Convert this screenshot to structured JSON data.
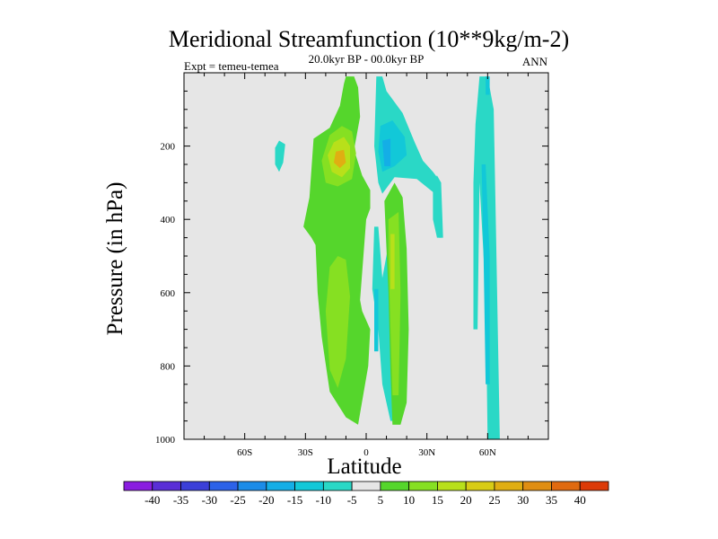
{
  "chart_data": {
    "type": "heatmap",
    "title": "Meridional Streamfunction (10**9kg/m-2)",
    "subtitle": "20.0kyr BP - 00.0kyr BP",
    "left_label": "Expt = temeu-temea",
    "right_label": "ANN",
    "xlabel": "Latitude",
    "ylabel": "Pressure (in hPa)",
    "xlim": [
      -90,
      90
    ],
    "ylim": [
      1000,
      0
    ],
    "x_ticks": [
      {
        "value": -60,
        "label": "60S"
      },
      {
        "value": -30,
        "label": "30S"
      },
      {
        "value": 0,
        "label": "0"
      },
      {
        "value": 30,
        "label": "30N"
      },
      {
        "value": 60,
        "label": "60N"
      }
    ],
    "y_ticks": [
      {
        "value": 200,
        "label": "200"
      },
      {
        "value": 400,
        "label": "400"
      },
      {
        "value": 600,
        "label": "600"
      },
      {
        "value": 800,
        "label": "800"
      },
      {
        "value": 1000,
        "label": "1000"
      }
    ],
    "background_color": "#e6e6e6",
    "colorbar": {
      "labels": [
        "-40",
        "-35",
        "-30",
        "-25",
        "-20",
        "-15",
        "-10",
        "-5",
        "5",
        "10",
        "15",
        "20",
        "25",
        "30",
        "35",
        "40"
      ],
      "colors": [
        "#8a1de0",
        "#5a2ed6",
        "#3b3fd8",
        "#2c62e8",
        "#1c8ce8",
        "#14aee6",
        "#12c8d8",
        "#2ad8c6",
        "#e6e6e6",
        "#55d62c",
        "#86e022",
        "#b8e01a",
        "#d8cc14",
        "#e0ae12",
        "#e08e12",
        "#e06a10",
        "#dc3a08"
      ]
    },
    "features": [
      {
        "name": "nh-high-lat-band",
        "color": "#2ad8c6",
        "points": [
          [
            54,
            140
          ],
          [
            56,
            10
          ],
          [
            60,
            10
          ],
          [
            63,
            100
          ],
          [
            64,
            400
          ],
          [
            66,
            1000
          ],
          [
            60,
            1000
          ],
          [
            59,
            600
          ],
          [
            56,
            300
          ],
          [
            55,
            700
          ],
          [
            53,
            700
          ],
          [
            53,
            300
          ]
        ]
      },
      {
        "name": "nh-high-lat-core",
        "color": "#12c8d8",
        "points": [
          [
            57,
            250
          ],
          [
            59,
            250
          ],
          [
            61,
            500
          ],
          [
            61,
            850
          ],
          [
            59,
            850
          ],
          [
            58,
            500
          ]
        ]
      },
      {
        "name": "nh-high-lat-tip",
        "color": "#12c8d8",
        "points": [
          [
            59,
            10
          ],
          [
            61,
            10
          ],
          [
            61,
            60
          ],
          [
            59,
            60
          ]
        ]
      },
      {
        "name": "tropical-neg-upper",
        "color": "#2ad8c6",
        "points": [
          [
            5,
            10
          ],
          [
            8,
            10
          ],
          [
            10,
            50
          ],
          [
            18,
            110
          ],
          [
            24,
            190
          ],
          [
            28,
            240
          ],
          [
            33,
            270
          ],
          [
            37,
            300
          ],
          [
            38,
            450
          ],
          [
            36,
            450
          ],
          [
            34,
            330
          ],
          [
            25,
            290
          ],
          [
            14,
            285
          ],
          [
            8,
            330
          ],
          [
            6,
            300
          ],
          [
            4,
            200
          ]
        ]
      },
      {
        "name": "tropical-neg-upper-inner",
        "color": "#12c8d8",
        "points": [
          [
            7,
            145
          ],
          [
            13,
            130
          ],
          [
            19,
            175
          ],
          [
            20,
            225
          ],
          [
            14,
            255
          ],
          [
            8,
            270
          ],
          [
            6,
            215
          ]
        ]
      },
      {
        "name": "tropical-neg-core",
        "color": "#14aee6",
        "points": [
          [
            8,
            185
          ],
          [
            12,
            180
          ],
          [
            12,
            255
          ],
          [
            9,
            255
          ]
        ]
      },
      {
        "name": "tropical-neg-lower",
        "color": "#2ad8c6",
        "points": [
          [
            3,
            590
          ],
          [
            6,
            700
          ],
          [
            8,
            850
          ],
          [
            12,
            950
          ],
          [
            16,
            950
          ],
          [
            17,
            850
          ],
          [
            16,
            700
          ],
          [
            14,
            600
          ],
          [
            13,
            470
          ],
          [
            11,
            470
          ],
          [
            8,
            560
          ],
          [
            6,
            420
          ],
          [
            4,
            420
          ]
        ]
      },
      {
        "name": "tropical-neg-lower-inner",
        "color": "#12c8d8",
        "points": [
          [
            4,
            590
          ],
          [
            6,
            590
          ],
          [
            6,
            760
          ],
          [
            4,
            760
          ]
        ]
      },
      {
        "name": "tropical-pos-nh",
        "color": "#55d62c",
        "points": [
          [
            9,
            350
          ],
          [
            14,
            300
          ],
          [
            18,
            340
          ],
          [
            20,
            480
          ],
          [
            21,
            700
          ],
          [
            20,
            900
          ],
          [
            17,
            960
          ],
          [
            13,
            960
          ],
          [
            12,
            820
          ],
          [
            11,
            600
          ],
          [
            10,
            480
          ]
        ]
      },
      {
        "name": "tropical-pos-nh-inner",
        "color": "#86e022",
        "points": [
          [
            11,
            400
          ],
          [
            16,
            380
          ],
          [
            17,
            600
          ],
          [
            16,
            880
          ],
          [
            13,
            880
          ],
          [
            12,
            700
          ],
          [
            11,
            500
          ]
        ]
      },
      {
        "name": "tropical-pos-nh-core",
        "color": "#b8e01a",
        "points": [
          [
            12,
            440
          ],
          [
            14,
            440
          ],
          [
            14,
            590
          ],
          [
            12,
            590
          ]
        ]
      },
      {
        "name": "sh-tropical-pos-main",
        "color": "#55d62c",
        "points": [
          [
            -10,
            10
          ],
          [
            -6,
            10
          ],
          [
            -4,
            40
          ],
          [
            -3,
            120
          ],
          [
            -6,
            210
          ],
          [
            -2,
            280
          ],
          [
            2,
            320
          ],
          [
            2,
            370
          ],
          [
            0,
            400
          ],
          [
            -3,
            620
          ],
          [
            -2,
            650
          ],
          [
            2,
            700
          ],
          [
            1,
            800
          ],
          [
            -4,
            960
          ],
          [
            -10,
            940
          ],
          [
            -18,
            870
          ],
          [
            -22,
            720
          ],
          [
            -24,
            600
          ],
          [
            -25,
            470
          ],
          [
            -27,
            450
          ],
          [
            -31,
            420
          ],
          [
            -28,
            340
          ],
          [
            -26,
            180
          ],
          [
            -18,
            150
          ],
          [
            -13,
            90
          ],
          [
            -11,
            30
          ]
        ]
      },
      {
        "name": "sh-pos-upper-inner",
        "color": "#86e022",
        "points": [
          [
            -18,
            170
          ],
          [
            -12,
            145
          ],
          [
            -7,
            160
          ],
          [
            -5,
            220
          ],
          [
            -7,
            290
          ],
          [
            -14,
            310
          ],
          [
            -20,
            300
          ],
          [
            -22,
            240
          ]
        ]
      },
      {
        "name": "sh-pos-upper-mid",
        "color": "#b8e01a",
        "points": [
          [
            -16,
            190
          ],
          [
            -11,
            175
          ],
          [
            -8,
            200
          ],
          [
            -8,
            260
          ],
          [
            -12,
            285
          ],
          [
            -17,
            270
          ],
          [
            -19,
            225
          ]
        ]
      },
      {
        "name": "sh-pos-upper-core",
        "color": "#e0ae12",
        "points": [
          [
            -15,
            215
          ],
          [
            -11,
            210
          ],
          [
            -10,
            245
          ],
          [
            -13,
            260
          ],
          [
            -16,
            245
          ]
        ]
      },
      {
        "name": "sh-pos-lower-inner",
        "color": "#86e022",
        "points": [
          [
            -18,
            530
          ],
          [
            -14,
            500
          ],
          [
            -10,
            510
          ],
          [
            -8,
            610
          ],
          [
            -10,
            780
          ],
          [
            -14,
            860
          ],
          [
            -18,
            810
          ],
          [
            -20,
            650
          ]
        ]
      },
      {
        "name": "sh-midlat-blob",
        "color": "#2ad8c6",
        "points": [
          [
            -45,
            205
          ],
          [
            -43,
            185
          ],
          [
            -40,
            195
          ],
          [
            -41,
            245
          ],
          [
            -43,
            270
          ],
          [
            -45,
            250
          ]
        ]
      },
      {
        "name": "nh-stripe-outer",
        "color": "#2ad8c6",
        "points": [
          [
            33,
            300
          ],
          [
            35,
            280
          ],
          [
            37,
            300
          ],
          [
            37,
            450
          ],
          [
            35,
            450
          ],
          [
            33,
            400
          ]
        ]
      }
    ]
  }
}
